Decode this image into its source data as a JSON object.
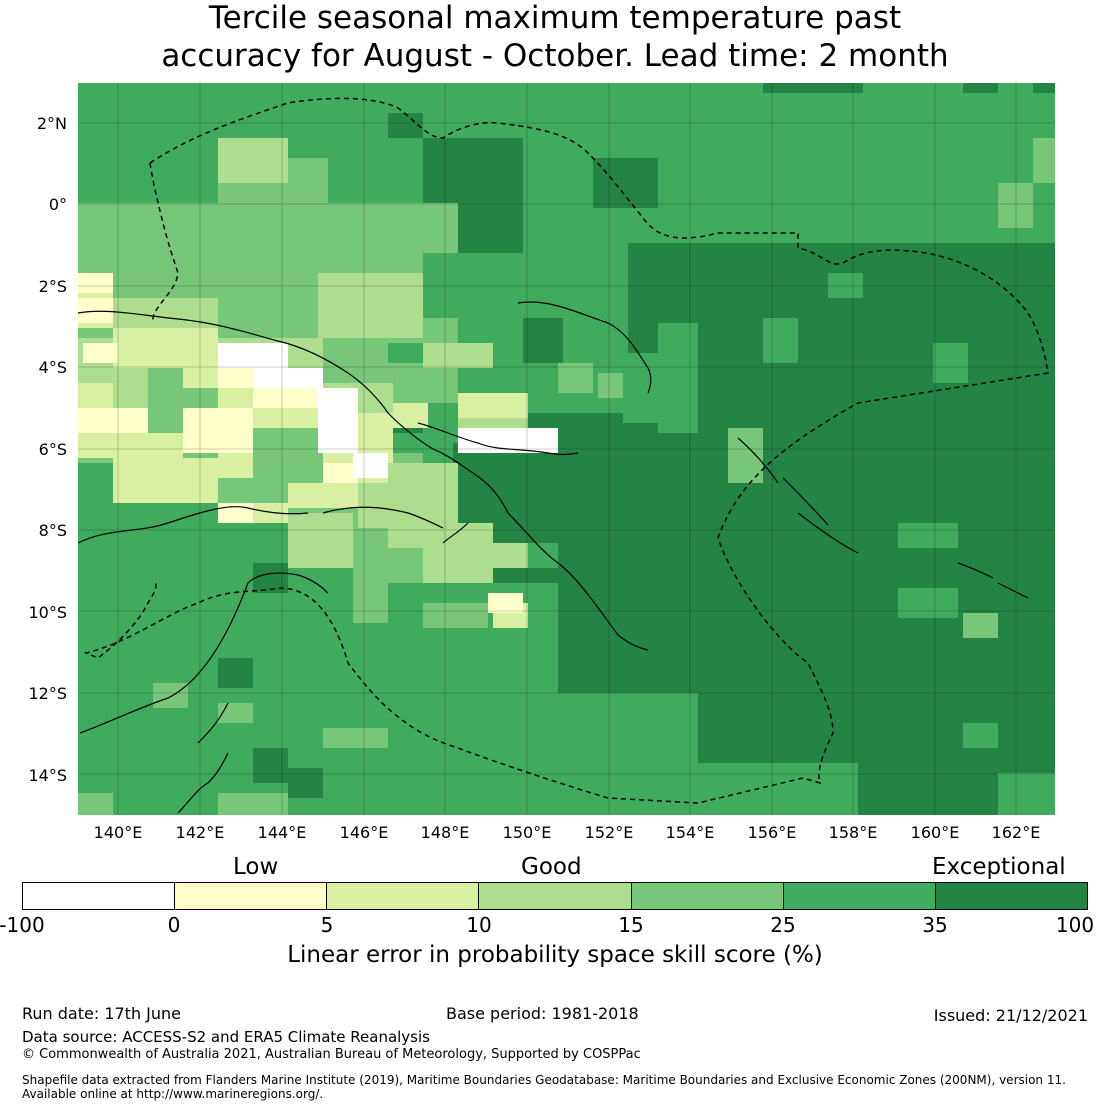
{
  "title": {
    "line1": "Tercile seasonal maximum temperature past",
    "line2": "accuracy for August - October. Lead time: 2 month"
  },
  "map": {
    "lat_labels": [
      "2°N",
      "0°",
      "2°S",
      "4°S",
      "6°S",
      "8°S",
      "10°S",
      "12°S",
      "14°S"
    ],
    "lon_labels": [
      "140°E",
      "142°E",
      "144°E",
      "146°E",
      "148°E",
      "150°E",
      "152°E",
      "154°E",
      "156°E",
      "158°E",
      "160°E",
      "162°E"
    ]
  },
  "colorbar": {
    "category_low": "Low",
    "category_good": "Good",
    "category_exceptional": "Exceptional",
    "ticks": [
      "-100",
      "0",
      "5",
      "10",
      "15",
      "25",
      "35",
      "100"
    ],
    "colors": [
      "#ffffff",
      "#ffffcc",
      "#d9f0a3",
      "#addd8e",
      "#78c679",
      "#41ab5d",
      "#238443"
    ],
    "label": "Linear error in probability space skill score (%)"
  },
  "footer": {
    "run_date": "Run date: 17th June",
    "base_period": "Base period: 1981-2018",
    "issued": "Issued: 21/12/2021",
    "data_source": "Data source: ACCESS-S2 and ERA5 Climate Reanalysis",
    "copyright": "© Commonwealth of Australia 2021, Australian Bureau of Meteorology, Supported by COSPPac",
    "shapefile_line1": "Shapefile data extracted from Flanders Marine Institute (2019), Maritime Boundaries Geodatabase: Maritime Boundaries and Exclusive Economic Zones (200NM), version 11.",
    "shapefile_line2": "Available online at http://www.marineregions.org/."
  }
}
